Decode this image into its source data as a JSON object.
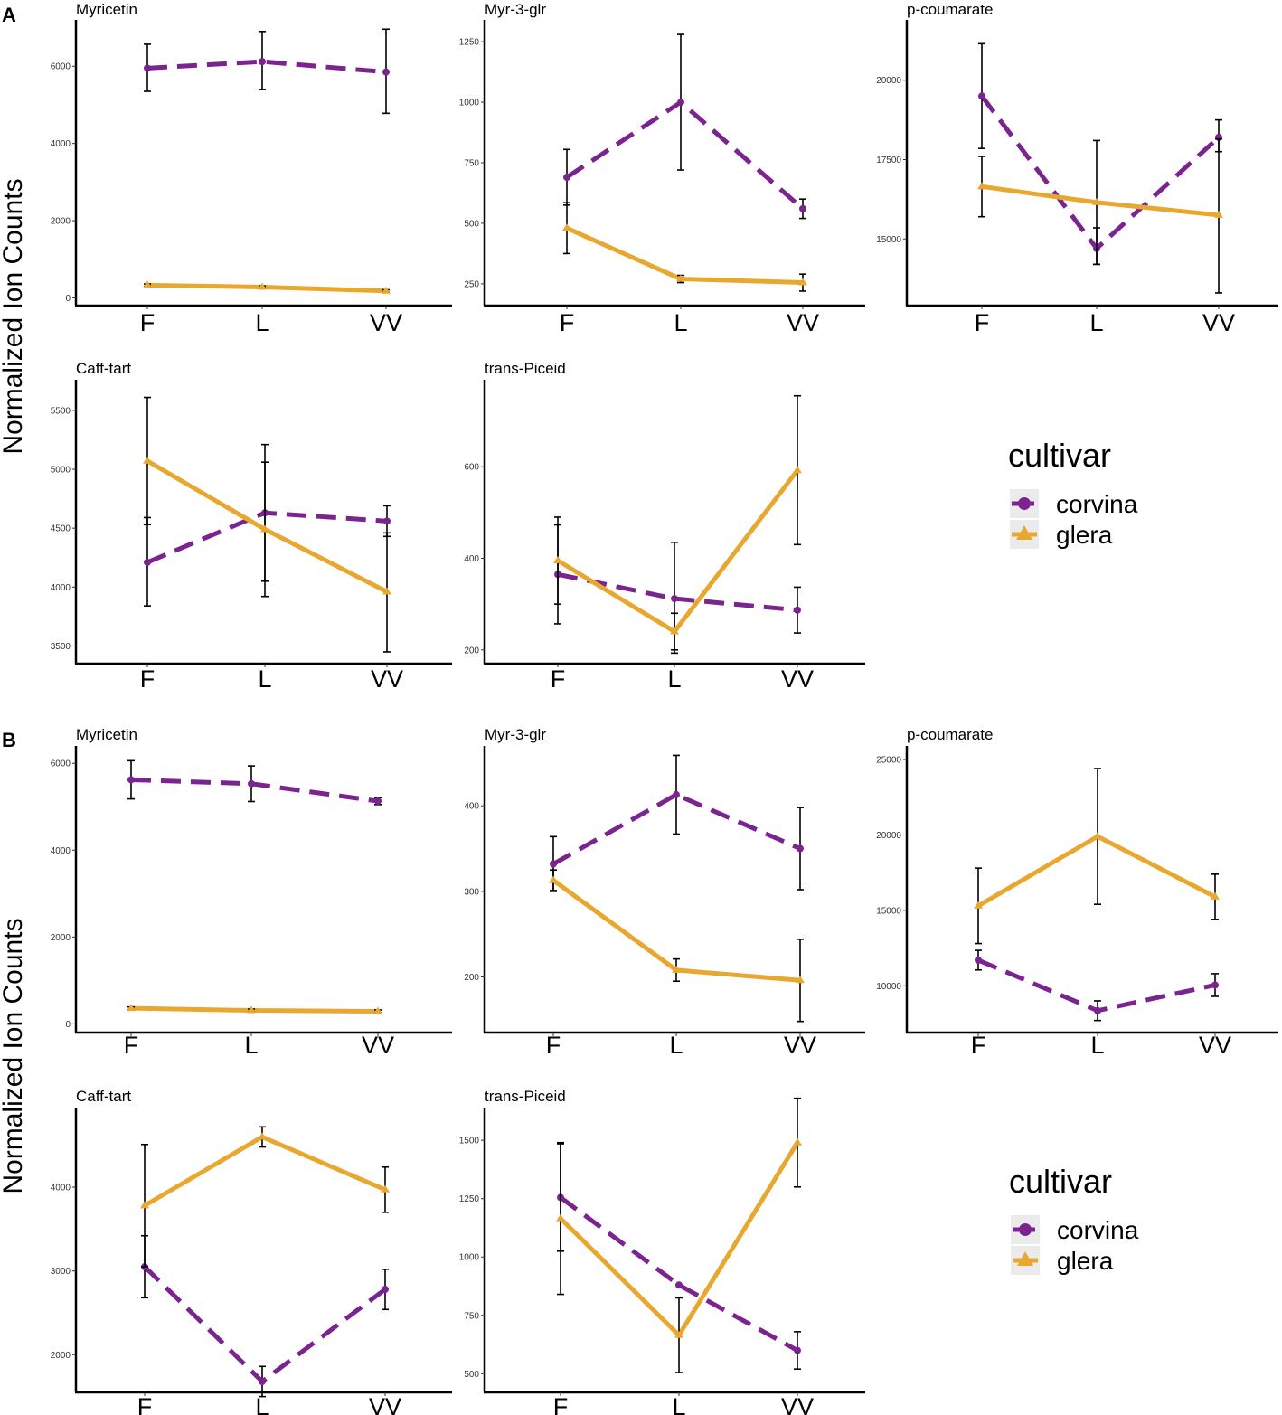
{
  "figure": {
    "panel_labels": [
      "A",
      "B"
    ],
    "ylabel": "Normalized Ion Counts",
    "legend": {
      "title": "cultivar",
      "entries": [
        {
          "name": "corvina",
          "color": "#7B2490",
          "linetype": "dashed",
          "shape": "circle"
        },
        {
          "name": "glera",
          "color": "#E8A830",
          "linetype": "solid",
          "shape": "triangle"
        }
      ]
    }
  },
  "chart_data": [
    {
      "section": "A",
      "type": "line",
      "title": "Myricetin",
      "categories": [
        "F",
        "L",
        "VV"
      ],
      "ylim": [
        -200,
        7200
      ],
      "yticks": [
        0,
        2000,
        4000,
        6000
      ],
      "series": [
        {
          "name": "corvina",
          "values": [
            5950,
            6120,
            5850
          ],
          "err_low": [
            5350,
            5400,
            4780
          ],
          "err_high": [
            6570,
            6900,
            6960
          ]
        },
        {
          "name": "glera",
          "values": [
            330,
            280,
            180
          ],
          "err_low": [
            300,
            260,
            150
          ],
          "err_high": [
            360,
            310,
            210
          ]
        }
      ]
    },
    {
      "section": "A",
      "type": "line",
      "title": "Myr-3-glr",
      "categories": [
        "F",
        "L",
        "VV"
      ],
      "ylim": [
        160,
        1340
      ],
      "yticks": [
        250,
        500,
        750,
        1000,
        1250
      ],
      "series": [
        {
          "name": "corvina",
          "values": [
            690,
            1000,
            560
          ],
          "err_low": [
            575,
            720,
            520
          ],
          "err_high": [
            805,
            1280,
            600
          ]
        },
        {
          "name": "glera",
          "values": [
            480,
            270,
            255
          ],
          "err_low": [
            375,
            255,
            220
          ],
          "err_high": [
            585,
            285,
            290
          ]
        }
      ]
    },
    {
      "section": "A",
      "type": "line",
      "title": "p-coumarate",
      "categories": [
        "F",
        "L",
        "VV"
      ],
      "ylim": [
        12900,
        21900
      ],
      "yticks": [
        15000,
        17500,
        20000
      ],
      "series": [
        {
          "name": "corvina",
          "values": [
            19500,
            14700,
            18200
          ],
          "err_low": [
            17850,
            14200,
            17750
          ],
          "err_high": [
            21150,
            15350,
            18750
          ]
        },
        {
          "name": "glera",
          "values": [
            16650,
            16150,
            15750
          ],
          "err_low": [
            15700,
            14200,
            13300
          ],
          "err_high": [
            17600,
            18100,
            18150
          ]
        }
      ]
    },
    {
      "section": "A",
      "type": "line",
      "title": "Caff-tart",
      "categories": [
        "F",
        "L",
        "VV"
      ],
      "ylim": [
        3350,
        5760
      ],
      "yticks": [
        3500,
        4000,
        4500,
        5000,
        5500
      ],
      "series": [
        {
          "name": "corvina",
          "values": [
            4210,
            4630,
            4560
          ],
          "err_low": [
            3840,
            4050,
            4430
          ],
          "err_high": [
            4590,
            5210,
            4690
          ]
        },
        {
          "name": "glera",
          "values": [
            5070,
            4490,
            3960
          ],
          "err_low": [
            4530,
            3920,
            3450
          ],
          "err_high": [
            5610,
            5060,
            4460
          ]
        }
      ]
    },
    {
      "section": "A",
      "type": "line",
      "title": "trans-Piceid",
      "categories": [
        "F",
        "L",
        "VV"
      ],
      "ylim": [
        170,
        790
      ],
      "yticks": [
        200,
        400,
        600
      ],
      "series": [
        {
          "name": "corvina",
          "values": [
            365,
            312,
            287
          ],
          "err_low": [
            257,
            193,
            237
          ],
          "err_high": [
            473,
            435,
            337
          ]
        },
        {
          "name": "glera",
          "values": [
            395,
            240,
            592
          ],
          "err_low": [
            300,
            200,
            430
          ],
          "err_high": [
            490,
            280,
            755
          ]
        }
      ]
    },
    {
      "section": "B",
      "type": "line",
      "title": "Myricetin",
      "categories": [
        "F",
        "L",
        "VV"
      ],
      "ylim": [
        -200,
        6400
      ],
      "yticks": [
        0,
        2000,
        4000,
        6000
      ],
      "series": [
        {
          "name": "corvina",
          "values": [
            5620,
            5530,
            5130
          ],
          "err_low": [
            5180,
            5120,
            5050
          ],
          "err_high": [
            6060,
            5940,
            5210
          ]
        },
        {
          "name": "glera",
          "values": [
            360,
            310,
            290
          ],
          "err_low": [
            330,
            280,
            260
          ],
          "err_high": [
            390,
            340,
            320
          ]
        }
      ]
    },
    {
      "section": "B",
      "type": "line",
      "title": "Myr-3-glr",
      "categories": [
        "F",
        "L",
        "VV"
      ],
      "ylim": [
        135,
        470
      ],
      "yticks": [
        200,
        300,
        400
      ],
      "series": [
        {
          "name": "corvina",
          "values": [
            332,
            413,
            350
          ],
          "err_low": [
            300,
            367,
            302
          ],
          "err_high": [
            364,
            459,
            398
          ]
        },
        {
          "name": "glera",
          "values": [
            313,
            208,
            196
          ],
          "err_low": [
            301,
            195,
            148
          ],
          "err_high": [
            325,
            221,
            244
          ]
        }
      ]
    },
    {
      "section": "B",
      "type": "line",
      "title": "p-coumarate",
      "categories": [
        "F",
        "L",
        "VV"
      ],
      "ylim": [
        6900,
        25900
      ],
      "yticks": [
        10000,
        15000,
        20000,
        25000
      ],
      "series": [
        {
          "name": "corvina",
          "values": [
            11700,
            8350,
            10050
          ],
          "err_low": [
            11050,
            7700,
            9300
          ],
          "err_high": [
            12350,
            9000,
            10800
          ]
        },
        {
          "name": "glera",
          "values": [
            15300,
            19900,
            15900
          ],
          "err_low": [
            12800,
            15400,
            14400
          ],
          "err_high": [
            17800,
            24400,
            17400
          ]
        }
      ]
    },
    {
      "section": "B",
      "type": "line",
      "title": "Caff-tart",
      "categories": [
        "F",
        "L",
        "VV"
      ],
      "ylim": [
        1550,
        4950
      ],
      "yticks": [
        2000,
        3000,
        4000
      ],
      "series": [
        {
          "name": "corvina",
          "values": [
            3050,
            1680,
            2780
          ],
          "err_low": [
            2680,
            1500,
            2540
          ],
          "err_high": [
            3420,
            1860,
            3020
          ]
        },
        {
          "name": "glera",
          "values": [
            3780,
            4600,
            3970
          ],
          "err_low": [
            3050,
            4480,
            3700
          ],
          "err_high": [
            4510,
            4720,
            4240
          ]
        }
      ]
    },
    {
      "section": "B",
      "type": "line",
      "title": "trans-Piceid",
      "categories": [
        "F",
        "L",
        "VV"
      ],
      "ylim": [
        420,
        1640
      ],
      "yticks": [
        500,
        750,
        1000,
        1250,
        1500
      ],
      "series": [
        {
          "name": "corvina",
          "values": [
            1255,
            880,
            600
          ],
          "err_low": [
            1025,
            880,
            520
          ],
          "err_high": [
            1485,
            880,
            680
          ]
        },
        {
          "name": "glera",
          "values": [
            1165,
            665,
            1490
          ],
          "err_low": [
            840,
            505,
            1300
          ],
          "err_high": [
            1490,
            825,
            1680
          ]
        }
      ]
    }
  ]
}
